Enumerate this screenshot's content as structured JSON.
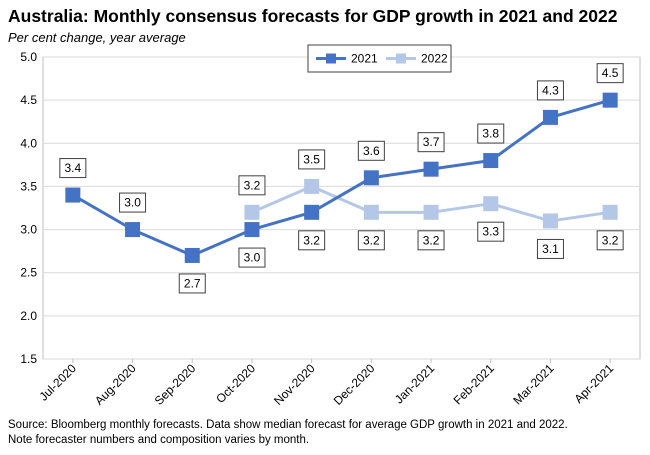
{
  "chart_data": {
    "type": "line",
    "title": "Australia: Monthly consensus forecasts for GDP growth in 2021 and 2022",
    "subtitle": "Per cent change, year average",
    "categories": [
      "Jul-2020",
      "Aug-2020",
      "Sep-2020",
      "Oct-2020",
      "Nov-2020",
      "Dec-2020",
      "Jan-2021",
      "Feb-2021",
      "Mar-2021",
      "Apr-2021"
    ],
    "series": [
      {
        "name": "2021",
        "color": "#4472C4",
        "values": [
          3.4,
          3.0,
          2.7,
          3.0,
          3.2,
          3.6,
          3.7,
          3.8,
          4.3,
          4.5
        ],
        "labels": [
          "3.4",
          "3.0",
          "2.7",
          "3.0",
          "3.2",
          "3.6",
          "3.7",
          "3.8",
          "4.3",
          "4.5"
        ]
      },
      {
        "name": "2022",
        "color": "#B4C7E7",
        "values": [
          null,
          null,
          null,
          3.2,
          3.5,
          3.2,
          3.2,
          3.3,
          3.1,
          3.2
        ],
        "labels": [
          null,
          null,
          null,
          "3.2",
          "3.5",
          "3.2",
          "3.2",
          "3.3",
          "3.1",
          "3.2"
        ]
      }
    ],
    "ylim": [
      1.5,
      5.0
    ],
    "yticks": [
      "1.5",
      "2.0",
      "2.5",
      "3.0",
      "3.5",
      "4.0",
      "4.5",
      "5.0"
    ],
    "grid": true,
    "legend": "top-center",
    "xlabel": "",
    "ylabel": ""
  },
  "source_lines": [
    "Source: Bloomberg monthly forecasts.  Data show median forecast for average GDP growth in 2021 and 2022.",
    "Note forecaster numbers and composition varies by month."
  ]
}
